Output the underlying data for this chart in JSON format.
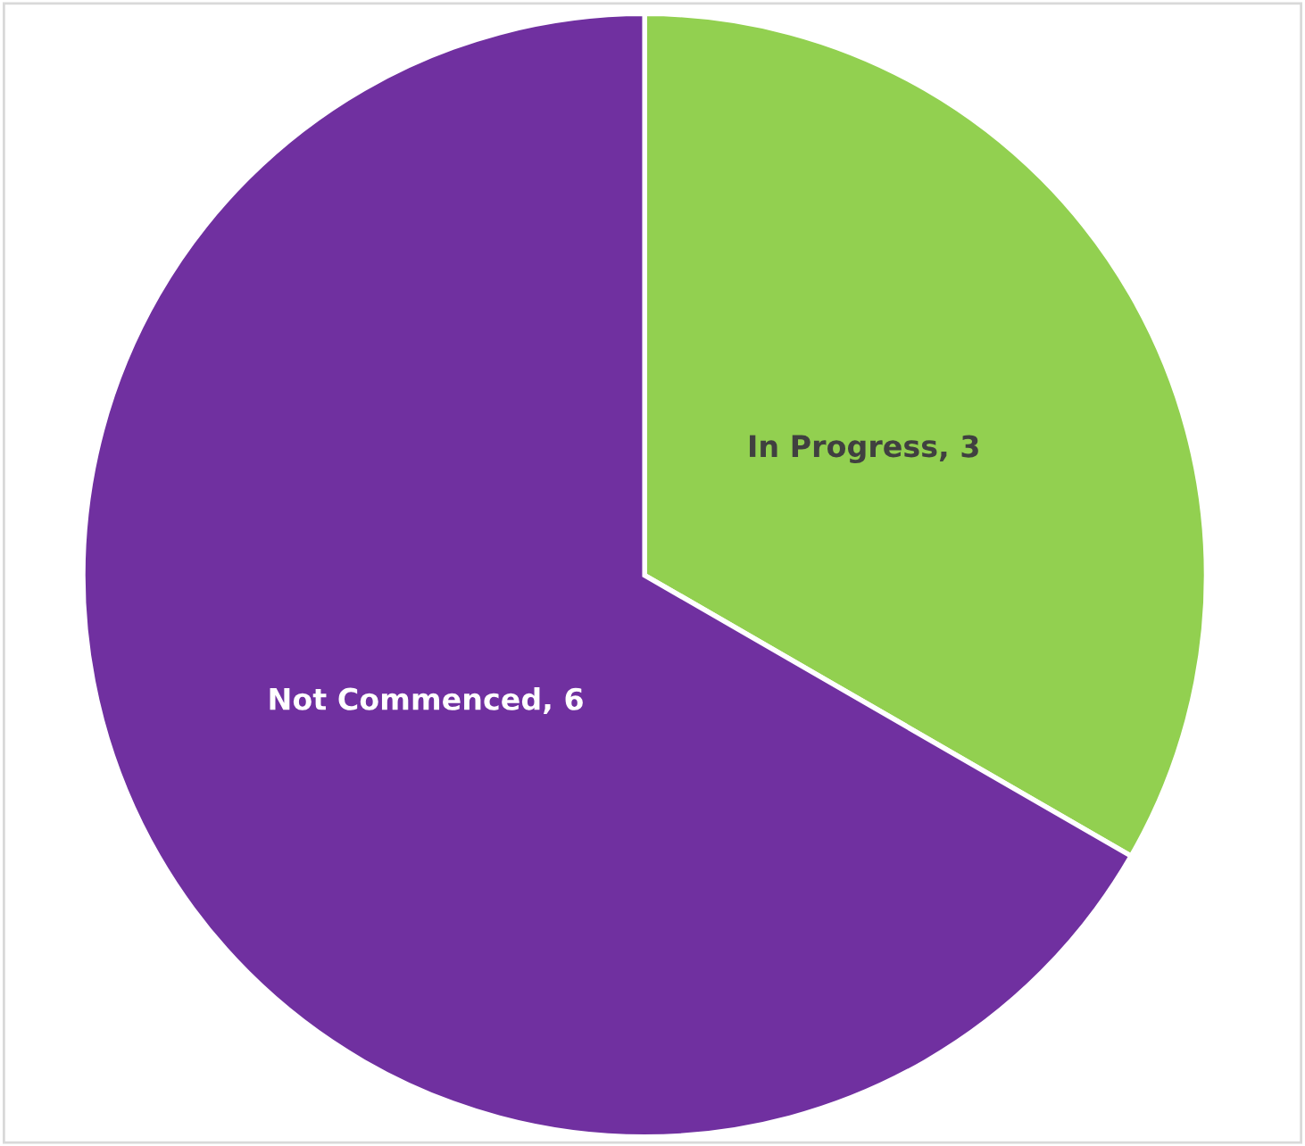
{
  "chart_data": {
    "type": "pie",
    "categories": [
      "In Progress",
      "Not Commenced"
    ],
    "values": [
      3,
      6
    ],
    "colors": [
      "#92d050",
      "#7030a0"
    ],
    "value_labels": [
      ", 3",
      ", 6"
    ]
  }
}
